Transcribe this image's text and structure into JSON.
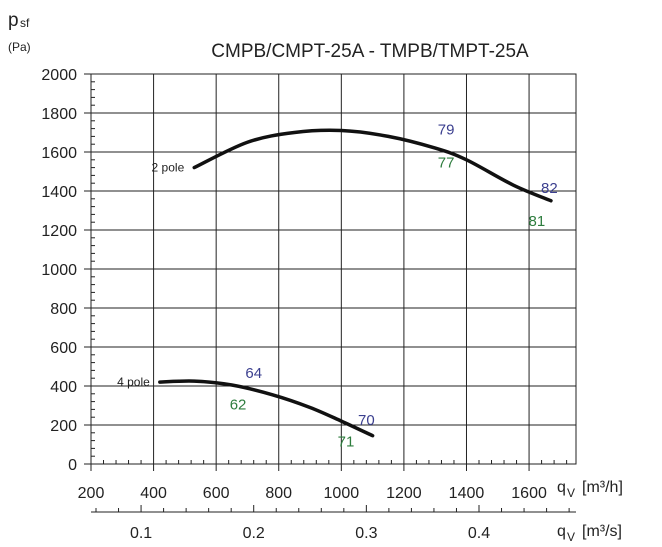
{
  "chart_data": {
    "type": "line",
    "title": "CMPB/CMPT-25A - TMPB/TMPT-25A",
    "y_axis": {
      "label_main": "p",
      "label_sub": "sf",
      "unit": "(Pa)",
      "range": [
        0,
        2000
      ],
      "ticks": [
        0,
        200,
        400,
        600,
        800,
        1000,
        1200,
        1400,
        1600,
        1800,
        2000
      ],
      "grid": true
    },
    "x_axis": {
      "label_main": "q",
      "label_sub": "V",
      "unit": "[m³/h]",
      "range": [
        200,
        1750
      ],
      "ticks": [
        200,
        400,
        600,
        800,
        1000,
        1200,
        1400,
        1600
      ],
      "grid": true
    },
    "x2_axis": {
      "label_main": "q",
      "label_sub": "V",
      "unit": "[m³/s]",
      "ticks": [
        0.1,
        0.2,
        0.3,
        0.4
      ],
      "tick_labels": [
        "0.1",
        "0.2",
        "0.3",
        "0.4"
      ]
    },
    "series": [
      {
        "name": "2 pole",
        "color": "#111111",
        "points": [
          [
            530,
            1520
          ],
          [
            700,
            1650
          ],
          [
            850,
            1700
          ],
          [
            1000,
            1710
          ],
          [
            1150,
            1680
          ],
          [
            1300,
            1620
          ],
          [
            1400,
            1560
          ],
          [
            1550,
            1430
          ],
          [
            1670,
            1350
          ]
        ]
      },
      {
        "name": "4 pole",
        "color": "#111111",
        "points": [
          [
            420,
            420
          ],
          [
            530,
            425
          ],
          [
            650,
            405
          ],
          [
            780,
            355
          ],
          [
            900,
            290
          ],
          [
            1000,
            220
          ],
          [
            1100,
            145
          ]
        ]
      }
    ],
    "annotations": [
      {
        "text": "79",
        "x": 1335,
        "y": 1690,
        "color": "#3b3f8f"
      },
      {
        "text": "77",
        "x": 1335,
        "y": 1520,
        "color": "#2e7d3e"
      },
      {
        "text": "82",
        "x": 1665,
        "y": 1390,
        "color": "#3b3f8f"
      },
      {
        "text": "81",
        "x": 1625,
        "y": 1220,
        "color": "#2e7d3e"
      },
      {
        "text": "64",
        "x": 720,
        "y": 440,
        "color": "#3b3f8f"
      },
      {
        "text": "62",
        "x": 670,
        "y": 280,
        "color": "#2e7d3e"
      },
      {
        "text": "70",
        "x": 1080,
        "y": 200,
        "color": "#3b3f8f"
      },
      {
        "text": "71",
        "x": 1015,
        "y": 90,
        "color": "#2e7d3e"
      }
    ]
  }
}
